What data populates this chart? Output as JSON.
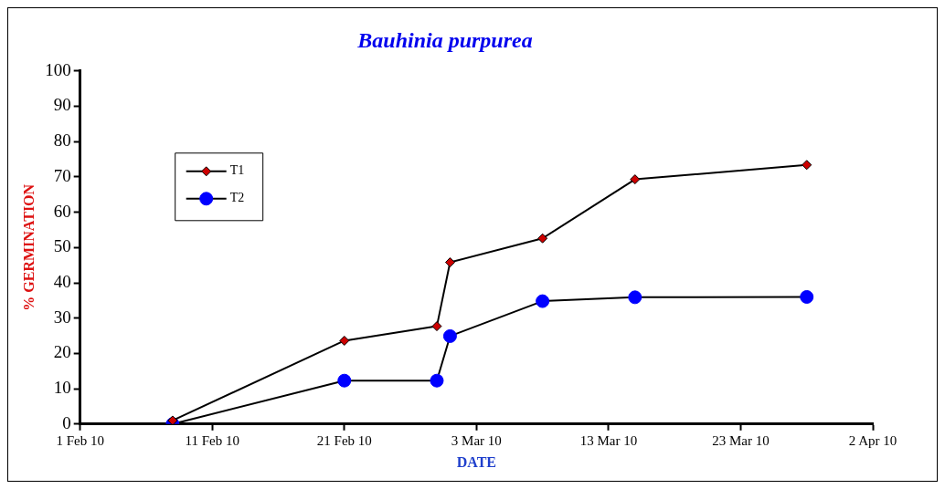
{
  "chart_data": {
    "type": "line",
    "title": "Bauhinia purpurea",
    "xlabel": "DATE",
    "ylabel": "% GERMINATION",
    "x": [
      "--02-08",
      "--02-21",
      "--02-28",
      "--03-01",
      "--03-08",
      "--03-15",
      "--03-28"
    ],
    "series": [
      {
        "name": "T1",
        "color": "#cc0000",
        "marker": "diamond",
        "values": [
          1,
          23.6,
          27.7,
          45.8,
          52.6,
          69.3,
          73.4
        ]
      },
      {
        "name": "T2",
        "color": "#0000ff",
        "marker": "circle",
        "values": [
          0,
          12.3,
          12.3,
          24.9,
          34.8,
          35.9,
          36
        ]
      }
    ],
    "xlim": [
      "--02-01",
      "--04-02"
    ],
    "xticks": [
      {
        "value": "--02-01",
        "label": "1 Feb 10"
      },
      {
        "value": "--02-11",
        "label": "11 Feb 10"
      },
      {
        "value": "--02-21",
        "label": "21 Feb 10"
      },
      {
        "value": "--03-03",
        "label": "3 Mar 10"
      },
      {
        "value": "--03-13",
        "label": "13 Mar 10"
      },
      {
        "value": "--03-23",
        "label": "23 Mar 10"
      },
      {
        "value": "--04-02",
        "label": "2 Apr 10"
      }
    ],
    "ylim": [
      0,
      100
    ],
    "yticks": [
      0,
      10,
      20,
      30,
      40,
      50,
      60,
      70,
      80,
      90,
      100
    ],
    "grid": false,
    "legend": "top left",
    "line_style": "solid"
  }
}
